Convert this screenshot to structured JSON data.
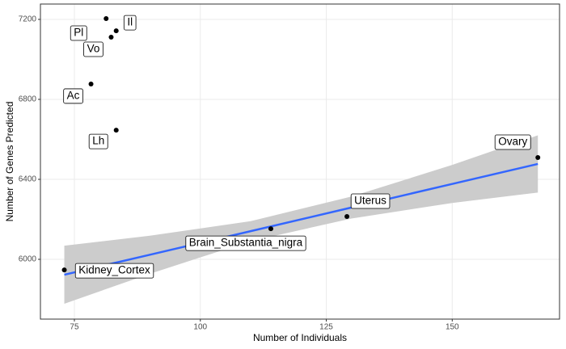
{
  "chart_data": {
    "type": "scatter",
    "x_label": "Number of Individuals",
    "y_label": "Number of Genes Predicted",
    "x": [
      73.0,
      114.0,
      129.1,
      167.0,
      81.3,
      83.3,
      82.3,
      78.3,
      83.3
    ],
    "values": [
      5947,
      6153,
      6214,
      6509,
      7204,
      7143,
      7111,
      6877,
      6646
    ],
    "labels": [
      "Kidney_Cortex",
      "Brain_Substantia_nigra",
      "Uterus",
      "Ovary",
      "Pl",
      "Il",
      "Vo",
      "Ac",
      "Lh"
    ],
    "point_color": "#000000",
    "fit": {
      "x": [
        73,
        90,
        110,
        130,
        150,
        167
      ],
      "values": [
        5923,
        6023,
        6141,
        6259,
        6377,
        6477
      ],
      "lower": [
        5778,
        5928,
        6091,
        6204,
        6282,
        6334
      ],
      "upper": [
        6068,
        6118,
        6191,
        6314,
        6472,
        6620
      ],
      "color": "#3366ff",
      "band_color": "#cccccc"
    },
    "xlim": [
      68.26,
      171.3
    ],
    "ylim": [
      5701,
      7276.8
    ],
    "xticks": [
      75,
      100,
      125,
      150
    ],
    "yticks": [
      6000,
      6400,
      6800,
      7200
    ],
    "grid": true
  }
}
